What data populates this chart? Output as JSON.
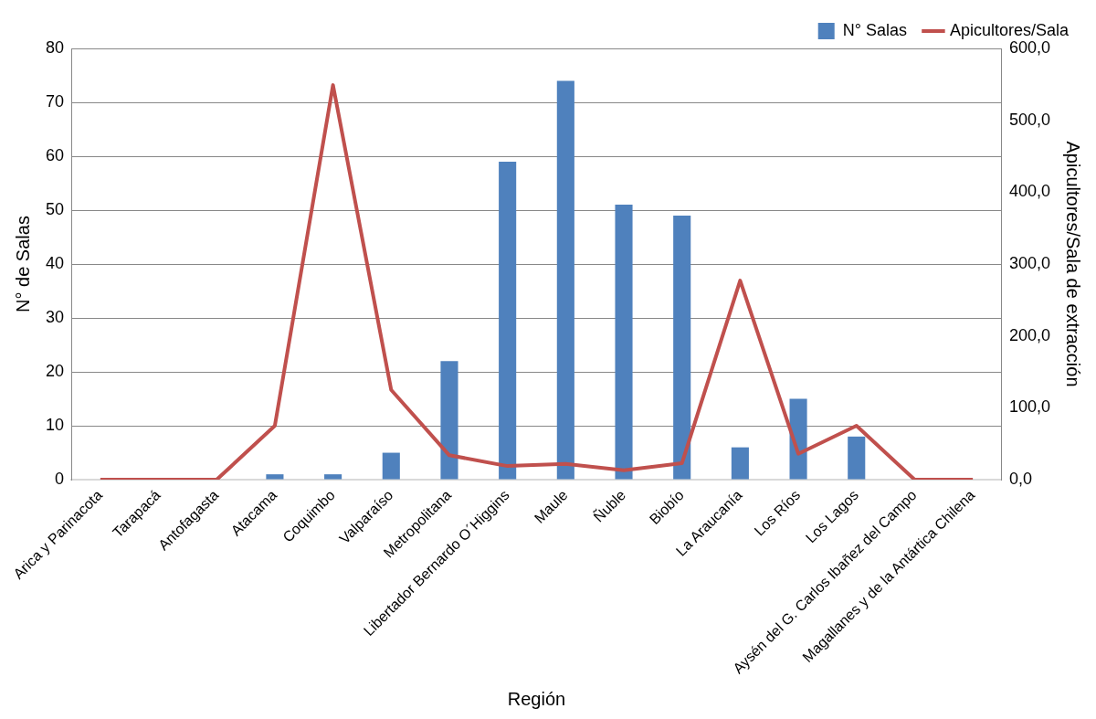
{
  "chart_data": {
    "type": "bar",
    "xlabel": "Región",
    "ylabel": "N° de Salas",
    "y2label": "Apicultores/Sala de extracción",
    "categories": [
      "Arica y Parinacota",
      "Tarapacá",
      "Antofagasta",
      "Atacama",
      "Coquimbo",
      "Valparaíso",
      "Metropolitana",
      "Libertador Bernardo O´Higgins",
      "Maule",
      "Ñuble",
      "Biobío",
      "La Araucanía",
      "Los Ríos",
      "Los Lagos",
      "Aysén del G. Carlos Ibañez del Campo",
      "Magallanes y de la Antártica Chilena"
    ],
    "series": [
      {
        "name": "N° Salas",
        "color": "#4f81bd",
        "values": [
          0,
          0,
          0,
          1,
          1,
          5,
          22,
          59,
          74,
          51,
          49,
          6,
          15,
          8,
          0,
          0
        ]
      },
      {
        "name": "Apicultores/Sala",
        "type": "line",
        "axis": "y2",
        "color": "#c0504d",
        "values": [
          0,
          0,
          0,
          75,
          549,
          125,
          34,
          19,
          22,
          13,
          23,
          277,
          36,
          75,
          0,
          0
        ]
      }
    ],
    "ylim": [
      0,
      80
    ],
    "yticks": [
      0,
      10,
      20,
      30,
      40,
      50,
      60,
      70,
      80
    ],
    "y2lim": [
      0,
      600
    ],
    "y2ticks": [
      {
        "value": 0,
        "label": "0,0"
      },
      {
        "value": 100,
        "label": "100,0"
      },
      {
        "value": 200,
        "label": "200,0"
      },
      {
        "value": 300,
        "label": "300,0"
      },
      {
        "value": 400,
        "label": "400,0"
      },
      {
        "value": 500,
        "label": "500,0"
      },
      {
        "value": 600,
        "label": "600,0"
      }
    ],
    "grid": "y",
    "legend": "top right",
    "marker": "none",
    "line_style": "solid"
  }
}
